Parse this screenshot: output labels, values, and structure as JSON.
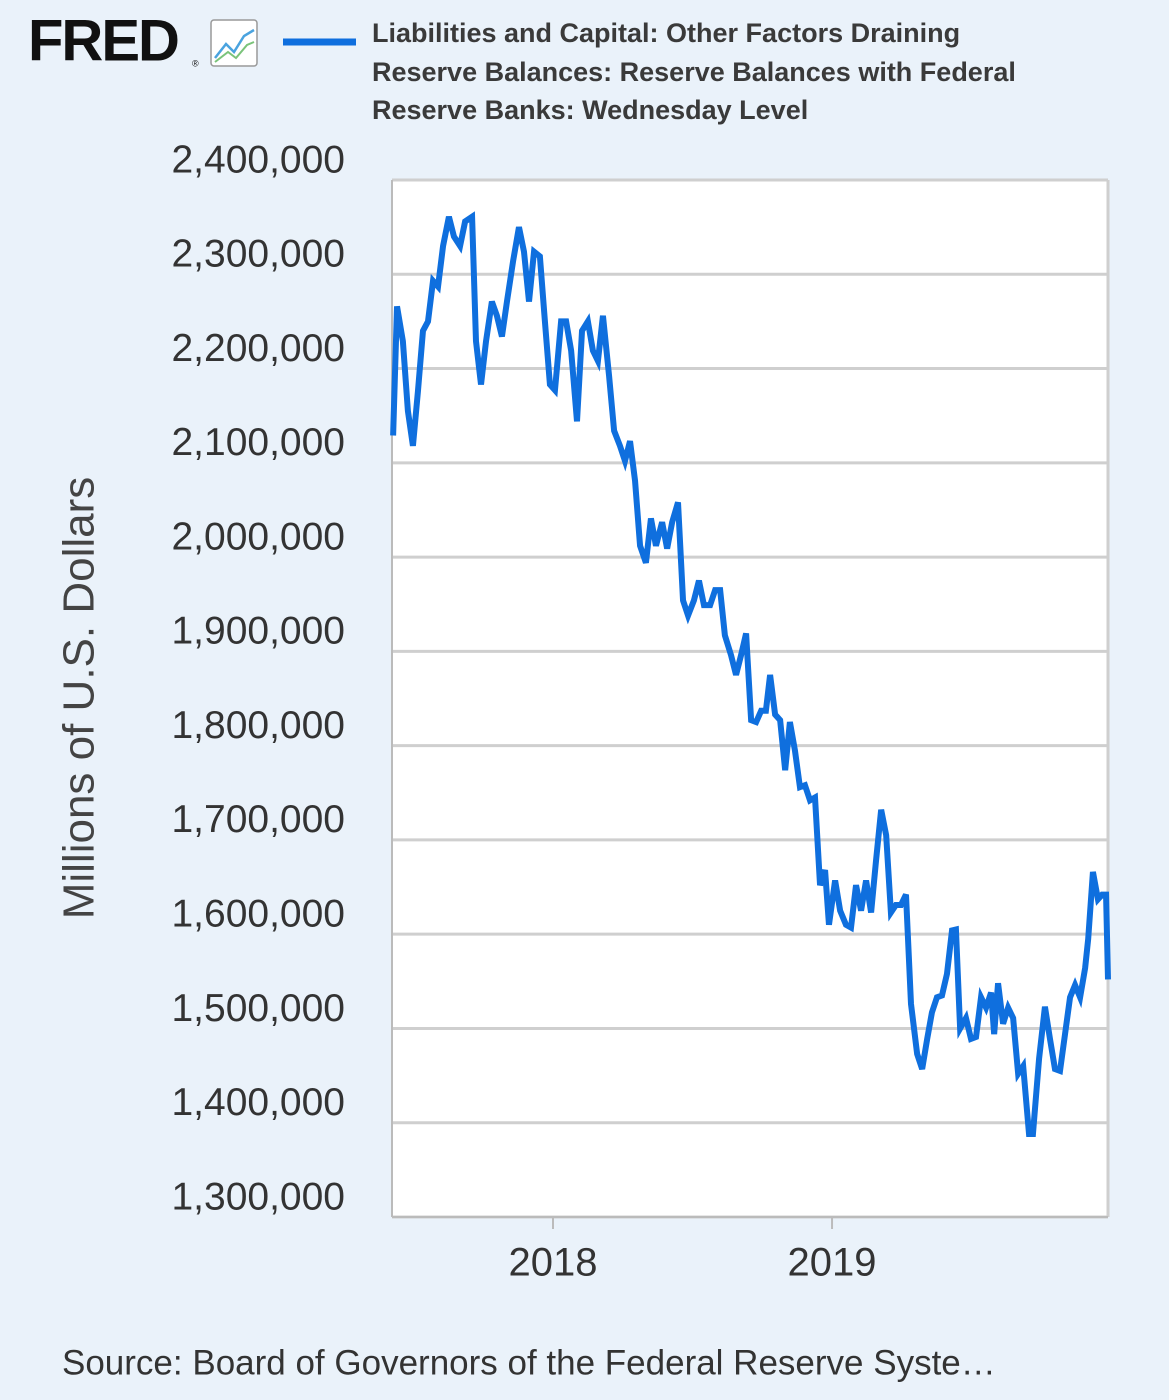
{
  "chart_data": {
    "type": "line",
    "logo": "FRED",
    "logo_mark": "®",
    "title": "Liabilities and Capital: Other Factors Draining Reserve Balances: Reserve Balances with Federal Reserve Banks: Wednesday Level",
    "y_label": "Millions of U.S. Dollars",
    "source": "Source: Board of Governors of the Federal Reserve Syste…",
    "grid": true,
    "xlim": [
      2017.423,
      2019.989
    ],
    "xticks": [
      2018,
      2019
    ],
    "ylim": [
      1300000,
      2400000
    ],
    "yticks": [
      {
        "value": 1300000,
        "label": "1,300,000"
      },
      {
        "value": 1400000,
        "label": "1,400,000"
      },
      {
        "value": 1500000,
        "label": "1,500,000"
      },
      {
        "value": 1600000,
        "label": "1,600,000"
      },
      {
        "value": 1700000,
        "label": "1,700,000"
      },
      {
        "value": 1800000,
        "label": "1,800,000"
      },
      {
        "value": 1900000,
        "label": "1,900,000"
      },
      {
        "value": 2000000,
        "label": "2,000,000"
      },
      {
        "value": 2100000,
        "label": "2,100,000"
      },
      {
        "value": 2200000,
        "label": "2,200,000"
      },
      {
        "value": 2300000,
        "label": "2,300,000"
      },
      {
        "value": 2400000,
        "label": "2,400,000"
      }
    ],
    "x": [
      2017.427,
      2017.441,
      2017.462,
      2017.48,
      2017.498,
      2017.516,
      2017.534,
      2017.552,
      2017.57,
      2017.588,
      2017.606,
      2017.627,
      2017.645,
      2017.667,
      2017.685,
      2017.71,
      2017.724,
      2017.742,
      2017.76,
      2017.781,
      2017.799,
      2017.817,
      2017.835,
      2017.857,
      2017.878,
      2017.896,
      2017.914,
      2017.932,
      2017.953,
      2017.971,
      2017.989,
      2018.007,
      2018.029,
      2018.047,
      2018.065,
      2018.086,
      2018.104,
      2018.125,
      2018.143,
      2018.161,
      2018.179,
      2018.201,
      2018.219,
      2018.24,
      2018.258,
      2018.276,
      2018.294,
      2018.312,
      2018.333,
      2018.351,
      2018.369,
      2018.391,
      2018.409,
      2018.427,
      2018.448,
      2018.466,
      2018.484,
      2018.505,
      2018.523,
      2018.541,
      2018.563,
      2018.581,
      2018.599,
      2018.616,
      2018.638,
      2018.656,
      2018.674,
      2018.692,
      2018.71,
      2018.728,
      2018.746,
      2018.763,
      2018.778,
      2018.796,
      2018.814,
      2018.832,
      2018.849,
      2018.867,
      2018.885,
      2018.903,
      2018.921,
      2018.939,
      2018.957,
      2018.975,
      2018.989,
      2019.011,
      2019.029,
      2019.05,
      2019.068,
      2019.086,
      2019.104,
      2019.122,
      2019.14,
      2019.158,
      2019.176,
      2019.194,
      2019.211,
      2019.229,
      2019.247,
      2019.265,
      2019.283,
      2019.305,
      2019.323,
      2019.341,
      2019.358,
      2019.376,
      2019.394,
      2019.412,
      2019.43,
      2019.444,
      2019.459,
      2019.48,
      2019.498,
      2019.516,
      2019.534,
      2019.552,
      2019.57,
      2019.581,
      2019.595,
      2019.613,
      2019.631,
      2019.649,
      2019.667,
      2019.685,
      2019.706,
      2019.72,
      2019.742,
      2019.763,
      2019.781,
      2019.799,
      2019.817,
      2019.835,
      2019.853,
      2019.871,
      2019.889,
      2019.907,
      2019.918,
      2019.935,
      2019.953,
      2019.968,
      2019.982,
      2019.989
    ],
    "series": [
      {
        "name": "Liabilities and Capital: Other Factors Draining Reserve Balances: Reserve Balances with Federal Reserve Banks: Wednesday Level",
        "color": "#0f6fde",
        "values": [
          2129000,
          2266000,
          2229000,
          2155000,
          2118000,
          2176000,
          2240000,
          2250000,
          2293000,
          2287000,
          2330000,
          2361000,
          2340000,
          2330000,
          2356000,
          2361000,
          2229000,
          2183000,
          2229000,
          2271000,
          2256000,
          2234000,
          2271000,
          2314000,
          2350000,
          2324000,
          2271000,
          2324000,
          2319000,
          2250000,
          2183000,
          2177000,
          2250000,
          2250000,
          2219000,
          2144000,
          2240000,
          2250000,
          2219000,
          2208000,
          2256000,
          2192000,
          2134000,
          2118000,
          2102000,
          2123000,
          2081000,
          2012000,
          1994000,
          2041000,
          2012000,
          2037000,
          2009000,
          2037000,
          2058000,
          1954000,
          1938000,
          1954000,
          1975000,
          1949000,
          1949000,
          1965000,
          1965000,
          1917000,
          1896000,
          1875000,
          1896000,
          1919000,
          1827000,
          1825000,
          1837000,
          1837000,
          1875000,
          1833000,
          1827000,
          1774000,
          1825000,
          1795000,
          1756000,
          1758000,
          1742000,
          1745000,
          1652000,
          1668000,
          1610000,
          1657000,
          1625000,
          1610000,
          1607000,
          1652000,
          1625000,
          1657000,
          1623000,
          1679000,
          1732000,
          1705000,
          1623000,
          1631000,
          1631000,
          1642000,
          1526000,
          1473000,
          1457000,
          1489000,
          1517000,
          1533000,
          1535000,
          1558000,
          1604000,
          1605000,
          1500000,
          1511000,
          1489000,
          1491000,
          1533000,
          1522000,
          1538000,
          1494000,
          1548000,
          1505000,
          1522000,
          1511000,
          1452000,
          1460000,
          1388000,
          1388000,
          1468000,
          1523000,
          1489000,
          1457000,
          1455000,
          1494000,
          1533000,
          1546000,
          1533000,
          1564000,
          1595000,
          1666000,
          1637000,
          1642000,
          1642000,
          1552000
        ]
      }
    ]
  }
}
